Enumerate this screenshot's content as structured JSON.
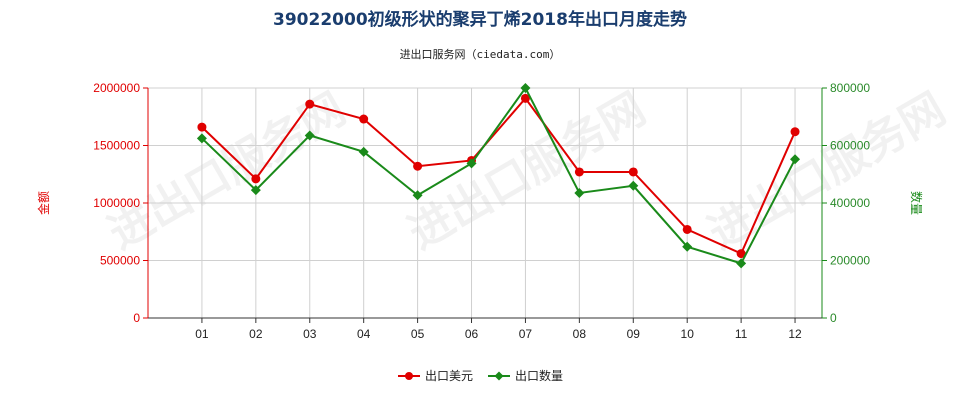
{
  "title": "39022000初级形状的聚异丁烯2018年出口月度走势",
  "subtitle": "进出口服务网（ciedata.com）",
  "watermark": "进出口服务网",
  "colors": {
    "usd": "#e00000",
    "qty": "#1a8a1a",
    "title": "#1a3d6e"
  },
  "chart_data": {
    "type": "line",
    "title": "39022000初级形状的聚异丁烯2018年出口月度走势",
    "categories": [
      "01",
      "02",
      "03",
      "04",
      "05",
      "06",
      "07",
      "08",
      "09",
      "10",
      "11",
      "12"
    ],
    "series": [
      {
        "name": "出口美元",
        "axis": "left",
        "values": [
          1660000,
          1210000,
          1860000,
          1730000,
          1320000,
          1370000,
          1910000,
          1270000,
          1270000,
          770000,
          560000,
          1620000
        ]
      },
      {
        "name": "出口数量",
        "axis": "right",
        "values": [
          625000,
          445000,
          635000,
          578000,
          427000,
          538000,
          800000,
          435000,
          460000,
          248000,
          190000,
          552000
        ]
      }
    ],
    "y_left": {
      "label": "金额",
      "ylim": [
        0,
        2000000
      ],
      "ticks": [
        "0",
        "500000",
        "1000000",
        "1500000",
        "2000000"
      ]
    },
    "y_right": {
      "label": "数量",
      "ylim": [
        0,
        800000
      ],
      "ticks": [
        "0",
        "200000",
        "400000",
        "600000",
        "800000"
      ]
    },
    "grid": true,
    "legend_position": "bottom-center"
  }
}
